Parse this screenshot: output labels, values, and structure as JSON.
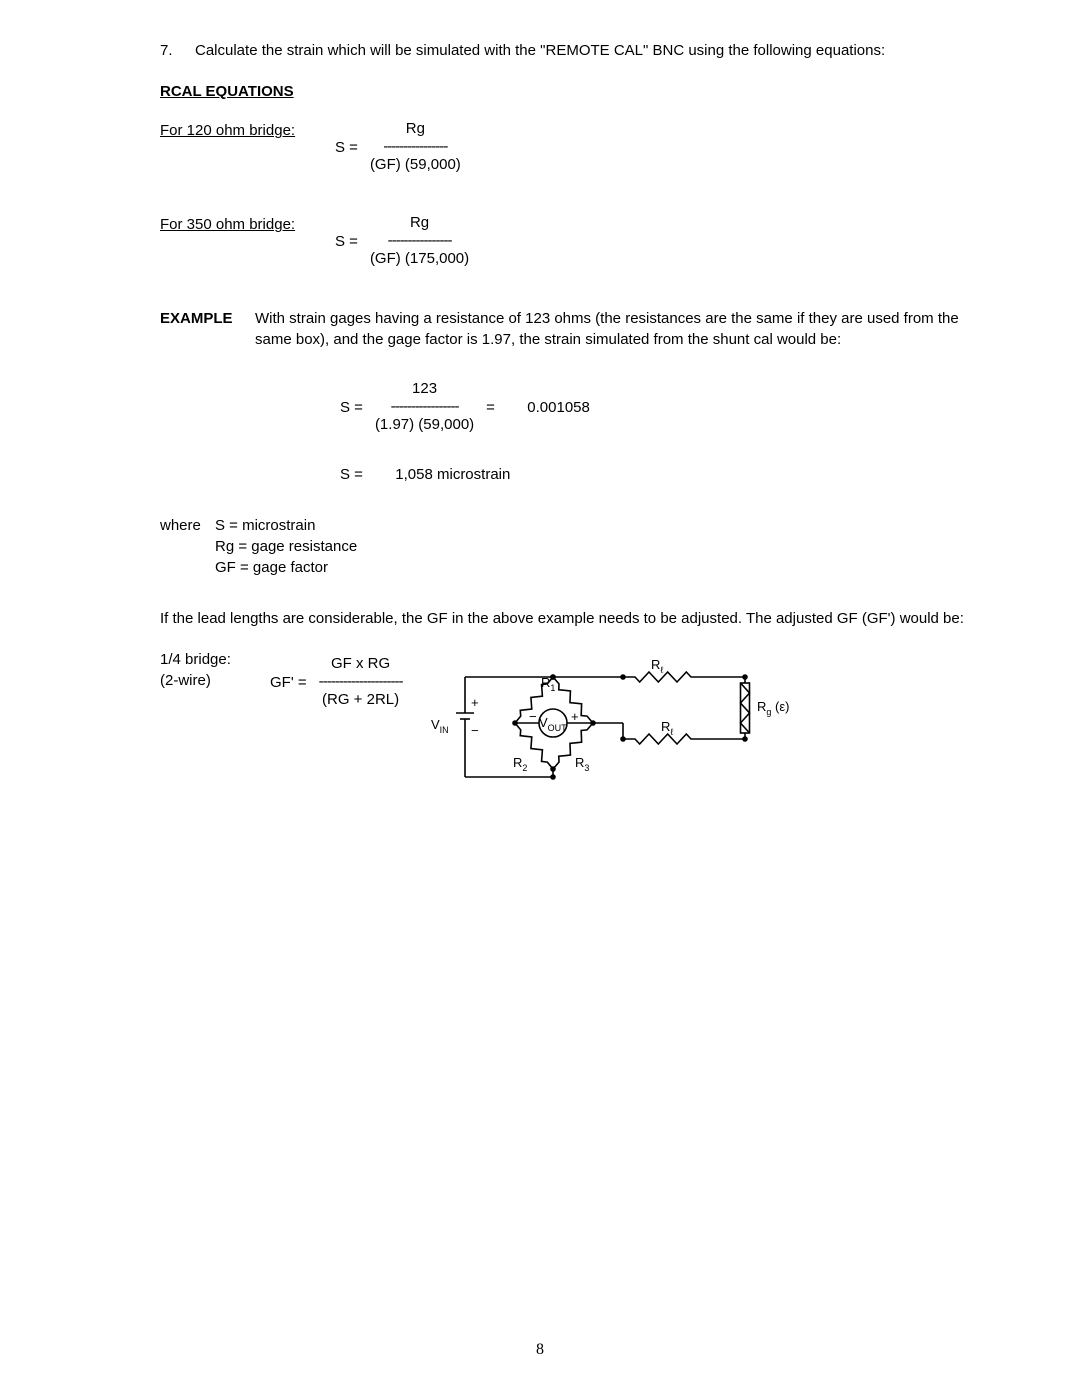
{
  "step": {
    "number": "7.",
    "text": "Calculate the strain which will be simulated with the \"REMOTE CAL\" BNC using the following equations:"
  },
  "section_heading": "RCAL EQUATIONS",
  "eq120": {
    "label": "For 120 ohm bridge:",
    "lhs": "S  =",
    "numerator": "Rg",
    "dashes": "----------------",
    "denominator": "(GF) (59,000)"
  },
  "eq350": {
    "label": "For 350 ohm bridge:",
    "lhs": "S  =",
    "numerator": "Rg",
    "dashes": "----------------",
    "denominator": "(GF) (175,000)"
  },
  "example": {
    "label": "EXAMPLE",
    "text": "With strain gages having a resistance of 123 ohms (the resistances are the same if they are used from the same box), and the gage factor is 1.97, the strain simulated from the shunt cal would be:"
  },
  "example_eq": {
    "lhs": "S  =",
    "numerator": "123",
    "dashes": "-----------------",
    "denominator": "(1.97) (59,000)",
    "eq_sign": "=",
    "result": "0.001058"
  },
  "result_line": {
    "lhs": "S  =",
    "rhs": "1,058 microstrain"
  },
  "where": {
    "label": "where",
    "lines": [
      "S = microstrain",
      "Rg = gage resistance",
      "GF = gage factor"
    ]
  },
  "lead_para": "If the lead lengths are considerable, the GF in the above example needs to be adjusted.  The adjusted GF (GF') would be:",
  "gf_eq": {
    "label_line1": "1/4 bridge:",
    "label_line2": "(2-wire)",
    "lhs": "GF'  =",
    "numerator": "GF x RG",
    "dashes": "---------------------",
    "denominator": "(RG + 2RL)"
  },
  "circuit": {
    "labels": {
      "vin": "V",
      "vin_sub": "IN",
      "vout": "V",
      "vout_sub": "OUT",
      "r1": "R",
      "r1_sub": "1",
      "r2": "R",
      "r2_sub": "2",
      "r3": "R",
      "r3_sub": "3",
      "rl_top": "R",
      "rl_top_sub": "ℓ",
      "rl_bot": "R",
      "rl_bot_sub": "ℓ",
      "rg": "R",
      "rg_sub": "g",
      "rg_eps": " (ε)"
    },
    "stroke": "#000000",
    "stroke_width": 1.6
  },
  "page_number": "8"
}
